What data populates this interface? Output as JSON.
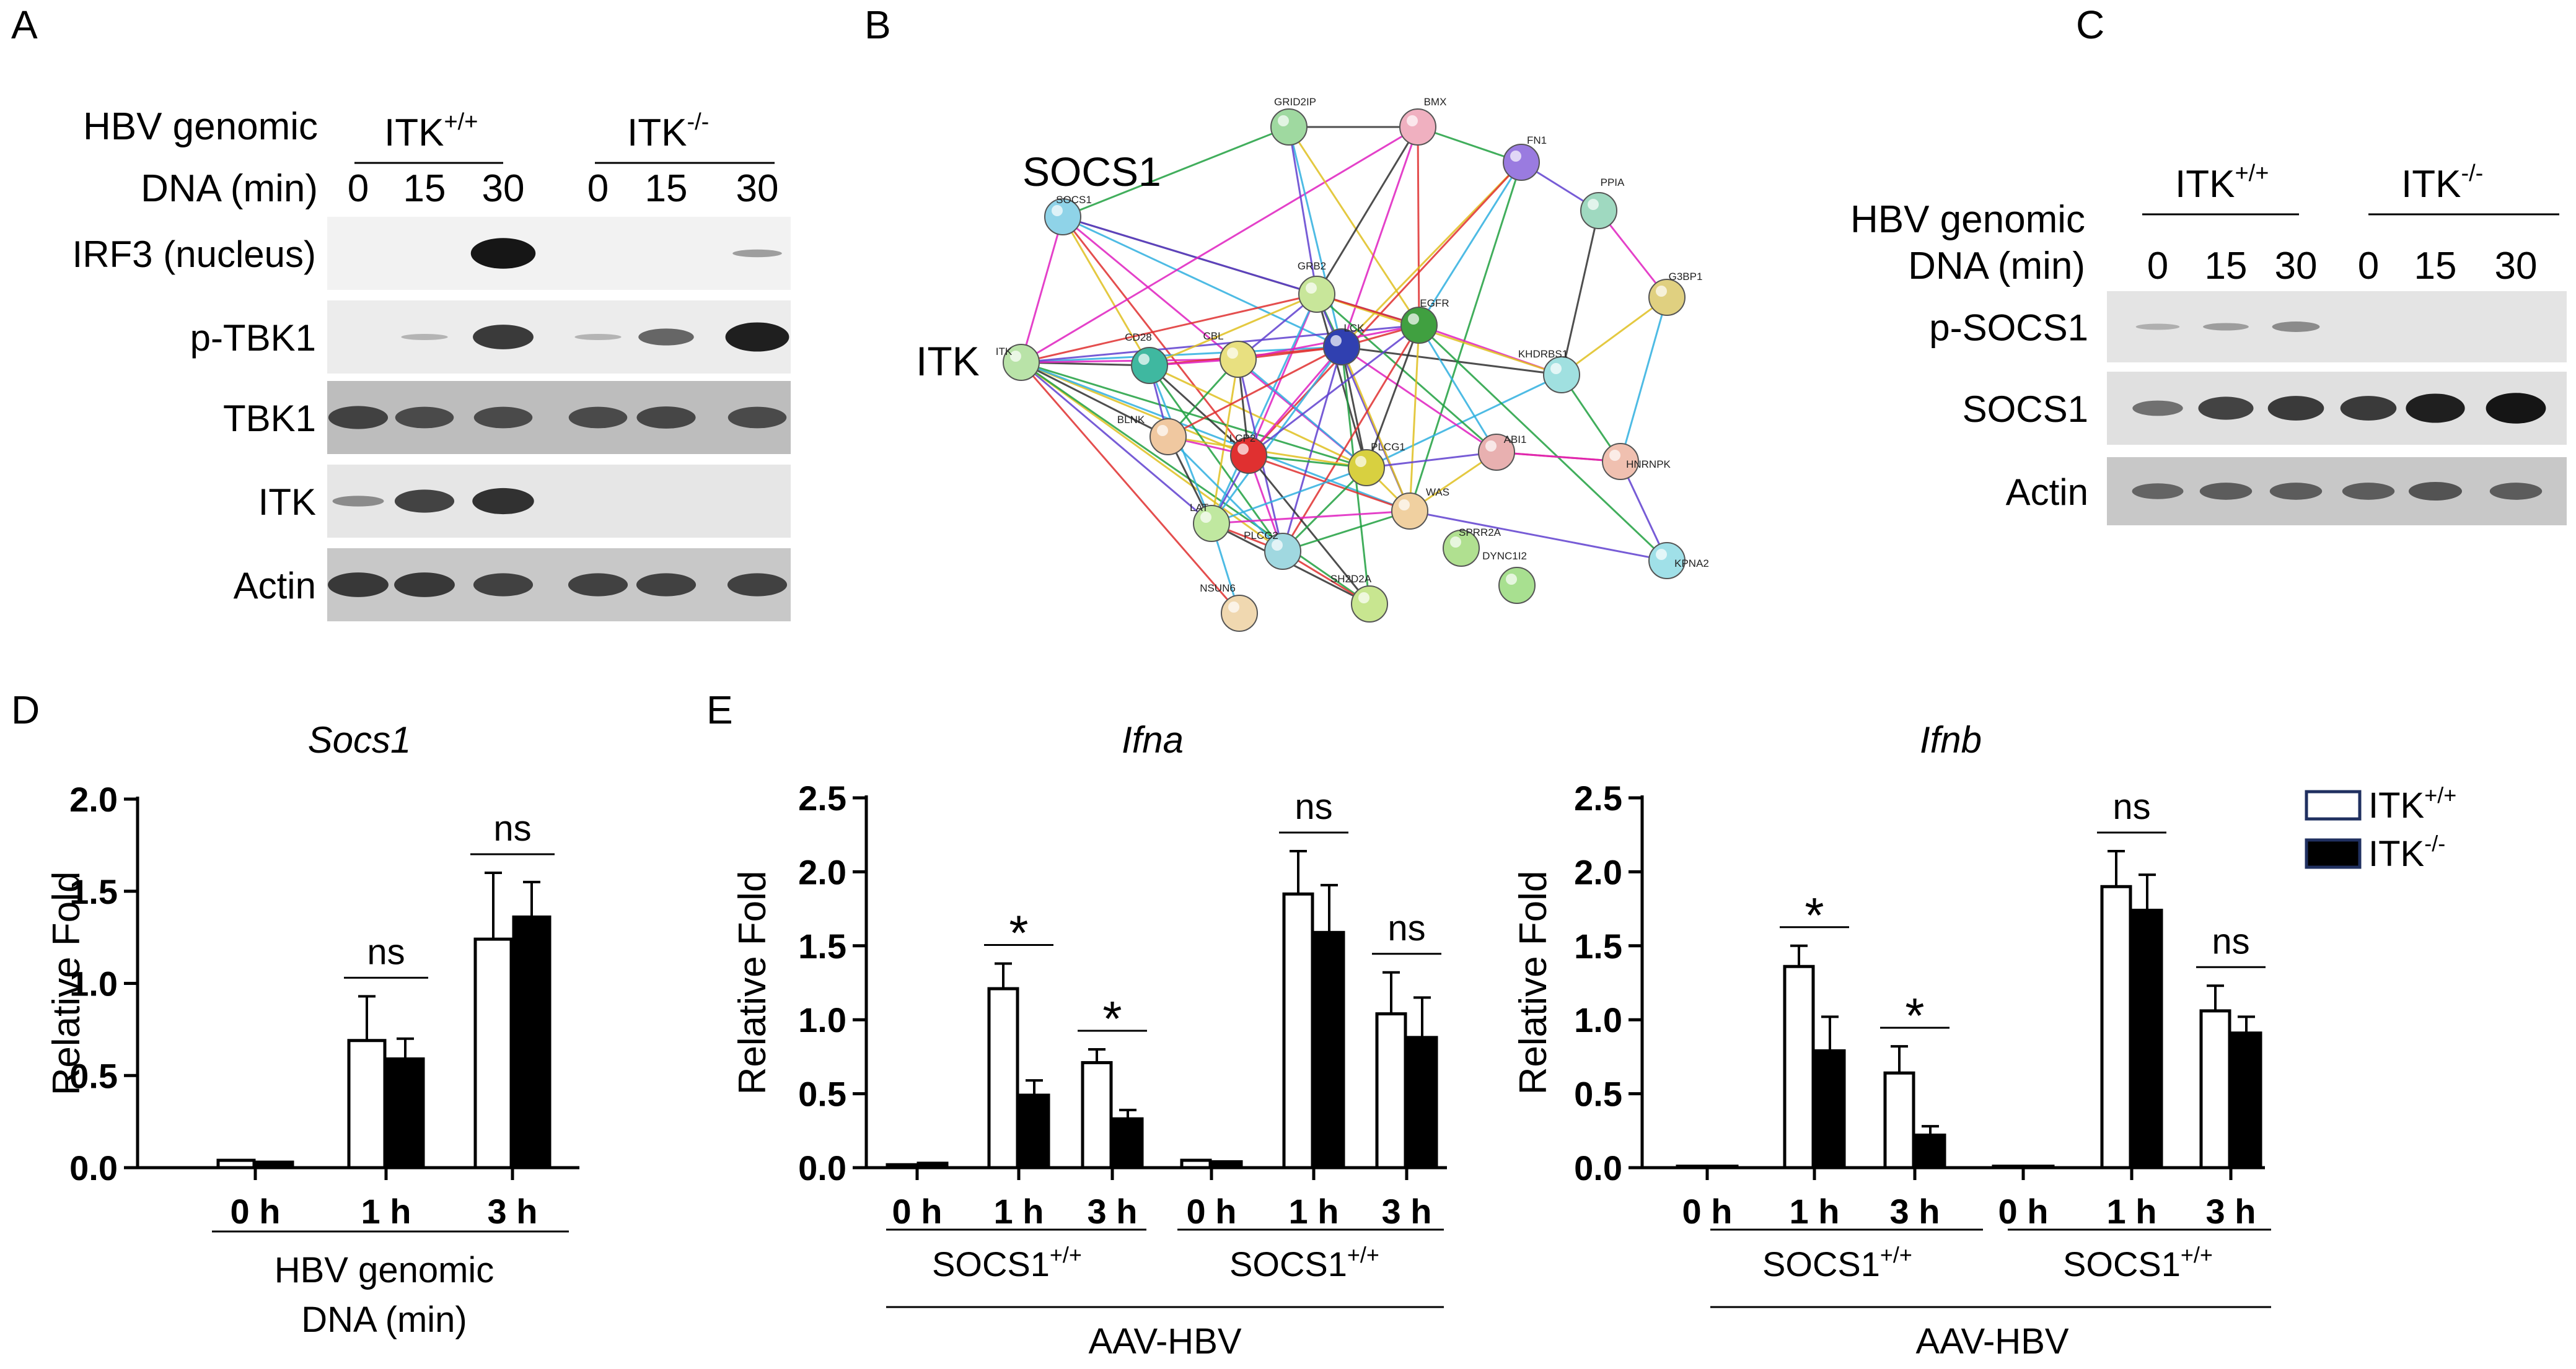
{
  "figure": {
    "panel_labels": {
      "A": "A",
      "B": "B",
      "C": "C",
      "D": "D",
      "E": "E"
    }
  },
  "panel_a": {
    "header_line1": "HBV genomic",
    "header_line2": "DNA (min)",
    "group1": "ITK",
    "group1_sup": "+/+",
    "group2": "ITK",
    "group2_sup": "-/-",
    "times": [
      "0",
      "15",
      "30",
      "0",
      "15",
      "30"
    ],
    "rows": [
      "IRF3 (nucleus)",
      "p-TBK1",
      "TBK1",
      "ITK",
      "Actin"
    ]
  },
  "panel_b": {
    "big_labels": [
      "SOCS1",
      "ITK"
    ],
    "nodes": [
      {
        "id": "SOCS1",
        "label": "SOCS1",
        "color": "#8fd3e8"
      },
      {
        "id": "ITK",
        "label": "ITK",
        "color": "#b9e3a8"
      },
      {
        "id": "GRID2IP",
        "label": "GRID2IP",
        "color": "#9fd9a0"
      },
      {
        "id": "BMX",
        "label": "BMX",
        "color": "#f0b0c0"
      },
      {
        "id": "FN1",
        "label": "FN1",
        "color": "#9a7be0"
      },
      {
        "id": "PPIA",
        "label": "PPIA",
        "color": "#9fd9c0"
      },
      {
        "id": "GRB2",
        "label": "GRB2",
        "color": "#c8e69a"
      },
      {
        "id": "CD28",
        "label": "CD28",
        "color": "#3fb8a0"
      },
      {
        "id": "CBL",
        "label": "CBL",
        "color": "#e8e080"
      },
      {
        "id": "LCK",
        "label": "LCK",
        "color": "#3040b0"
      },
      {
        "id": "EGFR",
        "label": "EGFR",
        "color": "#40a040"
      },
      {
        "id": "KHDRBS1",
        "label": "KHDRBS1",
        "color": "#a0e0e0"
      },
      {
        "id": "G3BP1",
        "label": "G3BP1",
        "color": "#e0d080"
      },
      {
        "id": "BLNK",
        "label": "BLNK",
        "color": "#f0c8a0"
      },
      {
        "id": "LCP2",
        "label": "LCP2",
        "color": "#e03030"
      },
      {
        "id": "PLCG1",
        "label": "PLCG1",
        "color": "#d8d040"
      },
      {
        "id": "ABI1",
        "label": "ABI1",
        "color": "#e8b0b0"
      },
      {
        "id": "HNRNPK",
        "label": "HNRNPK",
        "color": "#f0c0b0"
      },
      {
        "id": "LAT",
        "label": "LAT",
        "color": "#c0e8a0"
      },
      {
        "id": "WAS",
        "label": "WAS",
        "color": "#f0d0a0"
      },
      {
        "id": "SPRR2A",
        "label": "SPRR2A",
        "color": "#b0e090"
      },
      {
        "id": "PLCG2",
        "label": "PLCG2",
        "color": "#a0d8e0"
      },
      {
        "id": "KPNA2",
        "label": "KPNA2",
        "color": "#a0e0e8"
      },
      {
        "id": "DYNC1I2",
        "label": "DYNC1I2",
        "color": "#a8e090"
      },
      {
        "id": "NSUN6",
        "label": "NSUN6",
        "color": "#f0d8b0"
      },
      {
        "id": "SH2D2A",
        "label": "SH2D2A",
        "color": "#c8e690"
      }
    ],
    "edges": [
      [
        "SOCS1",
        "ITK"
      ],
      [
        "SOCS1",
        "GRB2"
      ],
      [
        "SOCS1",
        "LCK"
      ],
      [
        "SOCS1",
        "CD28"
      ],
      [
        "SOCS1",
        "EGFR"
      ],
      [
        "SOCS1",
        "GRID2IP"
      ],
      [
        "SOCS1",
        "LCP2"
      ],
      [
        "SOCS1",
        "PLCG1"
      ],
      [
        "ITK",
        "CD28"
      ],
      [
        "ITK",
        "LCK"
      ],
      [
        "ITK",
        "LCP2"
      ],
      [
        "ITK",
        "LAT"
      ],
      [
        "ITK",
        "PLCG1"
      ],
      [
        "ITK",
        "GRB2"
      ],
      [
        "ITK",
        "CBL"
      ],
      [
        "ITK",
        "BLNK"
      ],
      [
        "ITK",
        "WAS"
      ],
      [
        "ITK",
        "PLCG2"
      ],
      [
        "ITK",
        "EGFR"
      ],
      [
        "ITK",
        "SH2D2A"
      ],
      [
        "ITK",
        "NSUN6"
      ],
      [
        "ITK",
        "BMX"
      ],
      [
        "GRID2IP",
        "BMX"
      ],
      [
        "GRID2IP",
        "LCK"
      ],
      [
        "GRID2IP",
        "EGFR"
      ],
      [
        "GRID2IP",
        "GRB2"
      ],
      [
        "BMX",
        "FN1"
      ],
      [
        "BMX",
        "EGFR"
      ],
      [
        "BMX",
        "LCK"
      ],
      [
        "BMX",
        "GRB2"
      ],
      [
        "FN1",
        "EGFR"
      ],
      [
        "FN1",
        "LCK"
      ],
      [
        "FN1",
        "PPIA"
      ],
      [
        "FN1",
        "WAS"
      ],
      [
        "FN1",
        "LCP2"
      ],
      [
        "PPIA",
        "G3BP1"
      ],
      [
        "PPIA",
        "KHDRBS1"
      ],
      [
        "G3BP1",
        "HNRNPK"
      ],
      [
        "G3BP1",
        "KHDRBS1"
      ],
      [
        "HNRNPK",
        "KPNA2"
      ],
      [
        "HNRNPK",
        "KHDRBS1"
      ],
      [
        "HNRNPK",
        "ABI1"
      ],
      [
        "KHDRBS1",
        "EGFR"
      ],
      [
        "KHDRBS1",
        "LCK"
      ],
      [
        "KHDRBS1",
        "PLCG1"
      ],
      [
        "KHDRBS1",
        "GRB2"
      ],
      [
        "GRB2",
        "CBL"
      ],
      [
        "GRB2",
        "LCK"
      ],
      [
        "GRB2",
        "EGFR"
      ],
      [
        "GRB2",
        "LCP2"
      ],
      [
        "GRB2",
        "PLCG1"
      ],
      [
        "GRB2",
        "LAT"
      ],
      [
        "GRB2",
        "CD28"
      ],
      [
        "GRB2",
        "WAS"
      ],
      [
        "GRB2",
        "ABI1"
      ],
      [
        "CD28",
        "LCK"
      ],
      [
        "CD28",
        "CBL"
      ],
      [
        "CD28",
        "LCP2"
      ],
      [
        "CD28",
        "LAT"
      ],
      [
        "CD28",
        "PLCG1"
      ],
      [
        "CD28",
        "BLNK"
      ],
      [
        "CD28",
        "PLCG2"
      ],
      [
        "CBL",
        "LCK"
      ],
      [
        "CBL",
        "EGFR"
      ],
      [
        "CBL",
        "LCP2"
      ],
      [
        "CBL",
        "PLCG1"
      ],
      [
        "CBL",
        "LAT"
      ],
      [
        "CBL",
        "PLCG2"
      ],
      [
        "CBL",
        "BLNK"
      ],
      [
        "LCK",
        "EGFR"
      ],
      [
        "LCK",
        "LCP2"
      ],
      [
        "LCK",
        "PLCG1"
      ],
      [
        "LCK",
        "LAT"
      ],
      [
        "LCK",
        "WAS"
      ],
      [
        "LCK",
        "PLCG2"
      ],
      [
        "LCK",
        "SH2D2A"
      ],
      [
        "LCK",
        "BLNK"
      ],
      [
        "LCK",
        "ABI1"
      ],
      [
        "EGFR",
        "PLCG1"
      ],
      [
        "EGFR",
        "ABI1"
      ],
      [
        "EGFR",
        "WAS"
      ],
      [
        "EGFR",
        "LCP2"
      ],
      [
        "EGFR",
        "KPNA2"
      ],
      [
        "EGFR",
        "PLCG2"
      ],
      [
        "BLNK",
        "LCP2"
      ],
      [
        "BLNK",
        "LAT"
      ],
      [
        "BLNK",
        "PLCG2"
      ],
      [
        "BLNK",
        "PLCG1"
      ],
      [
        "LCP2",
        "LAT"
      ],
      [
        "LCP2",
        "PLCG1"
      ],
      [
        "LCP2",
        "WAS"
      ],
      [
        "LCP2",
        "PLCG2"
      ],
      [
        "LCP2",
        "SH2D2A"
      ],
      [
        "PLCG1",
        "LAT"
      ],
      [
        "PLCG1",
        "WAS"
      ],
      [
        "PLCG1",
        "ABI1"
      ],
      [
        "PLCG1",
        "PLCG2"
      ],
      [
        "LAT",
        "PLCG2"
      ],
      [
        "LAT",
        "WAS"
      ],
      [
        "LAT",
        "SH2D2A"
      ],
      [
        "LAT",
        "NSUN6"
      ],
      [
        "WAS",
        "ABI1"
      ],
      [
        "WAS",
        "KPNA2"
      ],
      [
        "WAS",
        "PLCG2"
      ],
      [
        "PLCG2",
        "SH2D2A"
      ],
      [
        "ABI1",
        "HNRNPK"
      ]
    ]
  },
  "panel_c": {
    "header_line1": "HBV genomic",
    "header_line2": "DNA (min)",
    "group1": "ITK",
    "group1_sup": "+/+",
    "group2": "ITK",
    "group2_sup": "-/-",
    "times": [
      "0",
      "15",
      "30",
      "0",
      "15",
      "30"
    ],
    "rows": [
      "p-SOCS1",
      "SOCS1",
      "Actin"
    ]
  },
  "legend": {
    "items": [
      {
        "label": "ITK",
        "sup": "+/+",
        "fill": "#ffffff"
      },
      {
        "label": "ITK",
        "sup": "-/-",
        "fill": "#000000"
      }
    ]
  },
  "chart_data": [
    {
      "type": "bar",
      "panel": "D",
      "title": "Socs1",
      "ylabel": "Relative Fold",
      "ylim": [
        0,
        2.0
      ],
      "yticks": [
        "0.0",
        "0.5",
        "1.0",
        "1.5",
        "2.0"
      ],
      "categories": [
        "0 h",
        "1 h",
        "3 h"
      ],
      "series": [
        {
          "name": "ITK+/+",
          "values": [
            0.04,
            0.69,
            1.24
          ],
          "errors": [
            0.0,
            0.24,
            0.36
          ]
        },
        {
          "name": "ITK-/-",
          "values": [
            0.03,
            0.59,
            1.36
          ],
          "errors": [
            0.0,
            0.11,
            0.19
          ]
        }
      ],
      "significance": [
        "",
        "ns",
        "ns"
      ],
      "group_labels": [
        {
          "text": "HBV genomic",
          "span": [
            0,
            2
          ]
        },
        {
          "text": "DNA (min)",
          "span": [
            0,
            2
          ]
        }
      ]
    },
    {
      "type": "bar",
      "panel": "E-left",
      "title": "Ifna",
      "ylabel": "Relative Fold",
      "ylim": [
        0,
        2.5
      ],
      "yticks": [
        "0.0",
        "0.5",
        "1.0",
        "1.5",
        "2.0",
        "2.5"
      ],
      "categories": [
        "0 h",
        "1 h",
        "3 h",
        "0 h",
        "1 h",
        "3 h"
      ],
      "series": [
        {
          "name": "ITK+/+",
          "values": [
            0.02,
            1.21,
            0.71,
            0.05,
            1.85,
            1.04
          ],
          "errors": [
            0.0,
            0.17,
            0.09,
            0.0,
            0.29,
            0.28
          ]
        },
        {
          "name": "ITK-/-",
          "values": [
            0.03,
            0.49,
            0.33,
            0.04,
            1.59,
            0.88
          ],
          "errors": [
            0.0,
            0.1,
            0.06,
            0.0,
            0.32,
            0.27
          ]
        }
      ],
      "significance": [
        "",
        "*",
        "*",
        "",
        "ns",
        "ns"
      ],
      "subgroup_label_1": "SOCS1",
      "subgroup_label_1_sup": "+/+",
      "subgroup_label_2": "SOCS1",
      "subgroup_label_2_sup": "+/+",
      "group_label": "AAV-HBV"
    },
    {
      "type": "bar",
      "panel": "E-right",
      "title": "Ifnb",
      "ylabel": "Relative Fold",
      "ylim": [
        0,
        2.5
      ],
      "yticks": [
        "0.0",
        "0.5",
        "1.0",
        "1.5",
        "2.0",
        "2.5"
      ],
      "categories": [
        "0 h",
        "1 h",
        "3 h",
        "0 h",
        "1 h",
        "3 h"
      ],
      "series": [
        {
          "name": "ITK+/+",
          "values": [
            0.01,
            1.36,
            0.64,
            0.01,
            1.9,
            1.06
          ],
          "errors": [
            0.0,
            0.14,
            0.18,
            0.0,
            0.24,
            0.17
          ]
        },
        {
          "name": "ITK-/-",
          "values": [
            0.01,
            0.79,
            0.22,
            0.01,
            1.74,
            0.91
          ],
          "errors": [
            0.0,
            0.23,
            0.06,
            0.0,
            0.24,
            0.11
          ]
        }
      ],
      "significance": [
        "",
        "*",
        "*",
        "",
        "ns",
        "ns"
      ],
      "subgroup_label_1": "SOCS1",
      "subgroup_label_1_sup": "+/+",
      "subgroup_label_2": "SOCS1",
      "subgroup_label_2_sup": "+/+",
      "group_label": "AAV-HBV"
    }
  ]
}
